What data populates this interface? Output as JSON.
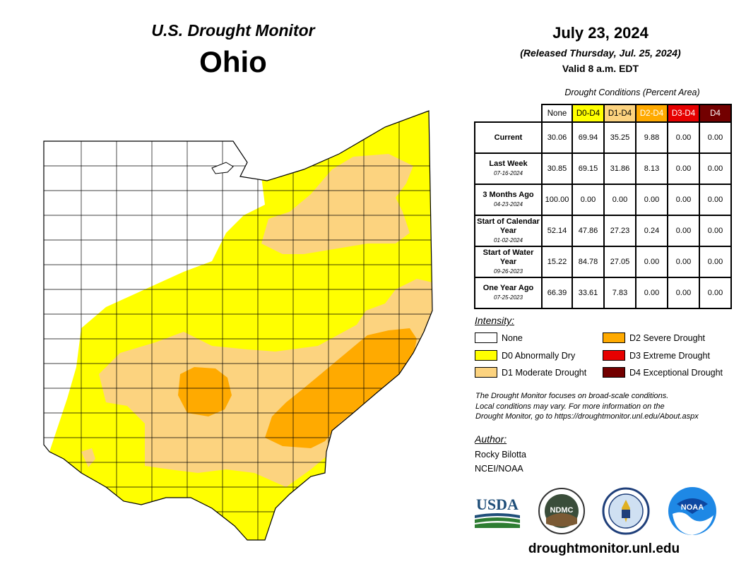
{
  "header": {
    "title": "U.S. Drought Monitor",
    "state": "Ohio",
    "date": "July 23, 2024",
    "released": "(Released Thursday, Jul. 25, 2024)",
    "valid": "Valid 8 a.m. EDT"
  },
  "table": {
    "caption": "Drought Conditions (Percent Area)",
    "columns": [
      {
        "label": "None",
        "color": "#ffffff",
        "text_color": "#000000"
      },
      {
        "label": "D0-D4",
        "color": "#ffff00",
        "text_color": "#000000"
      },
      {
        "label": "D1-D4",
        "color": "#fcd37f",
        "text_color": "#000000"
      },
      {
        "label": "D2-D4",
        "color": "#ffaa00",
        "text_color": "#ffffff"
      },
      {
        "label": "D3-D4",
        "color": "#e60000",
        "text_color": "#ffffff"
      },
      {
        "label": "D4",
        "color": "#730000",
        "text_color": "#ffffff"
      }
    ],
    "rows": [
      {
        "label": "Current",
        "date": "",
        "values": [
          "30.06",
          "69.94",
          "35.25",
          "9.88",
          "0.00",
          "0.00"
        ]
      },
      {
        "label": "Last Week",
        "date": "07-16-2024",
        "values": [
          "30.85",
          "69.15",
          "31.86",
          "8.13",
          "0.00",
          "0.00"
        ]
      },
      {
        "label": "3 Months Ago",
        "date": "04-23-2024",
        "values": [
          "100.00",
          "0.00",
          "0.00",
          "0.00",
          "0.00",
          "0.00"
        ]
      },
      {
        "label": "Start of Calendar Year",
        "date": "01-02-2024",
        "values": [
          "52.14",
          "47.86",
          "27.23",
          "0.24",
          "0.00",
          "0.00"
        ]
      },
      {
        "label": "Start of Water Year",
        "date": "09-26-2023",
        "values": [
          "15.22",
          "84.78",
          "27.05",
          "0.00",
          "0.00",
          "0.00"
        ]
      },
      {
        "label": "One Year Ago",
        "date": "07-25-2023",
        "values": [
          "66.39",
          "33.61",
          "7.83",
          "0.00",
          "0.00",
          "0.00"
        ]
      }
    ]
  },
  "legend": {
    "title": "Intensity:",
    "items": [
      {
        "label": "None",
        "color": "#ffffff"
      },
      {
        "label": "D0 Abnormally Dry",
        "color": "#ffff00"
      },
      {
        "label": "D1 Moderate Drought",
        "color": "#fcd37f"
      },
      {
        "label": "D2 Severe Drought",
        "color": "#ffaa00"
      },
      {
        "label": "D3 Extreme Drought",
        "color": "#e60000"
      },
      {
        "label": "D4 Exceptional Drought",
        "color": "#730000"
      }
    ]
  },
  "note": {
    "line1": "The Drought Monitor focuses on broad-scale conditions.",
    "line2": "Local conditions may vary. For more information on the",
    "line3": "Drought Monitor, go to https://droughtmonitor.unl.edu/About.aspx"
  },
  "author": {
    "title": "Author:",
    "name": "Rocky Bilotta",
    "org": "NCEI/NOAA"
  },
  "logos": {
    "usda": "USDA",
    "ndmc": "NDMC",
    "noaa": "NOAA"
  },
  "site_url": "droughtmonitor.unl.edu"
}
